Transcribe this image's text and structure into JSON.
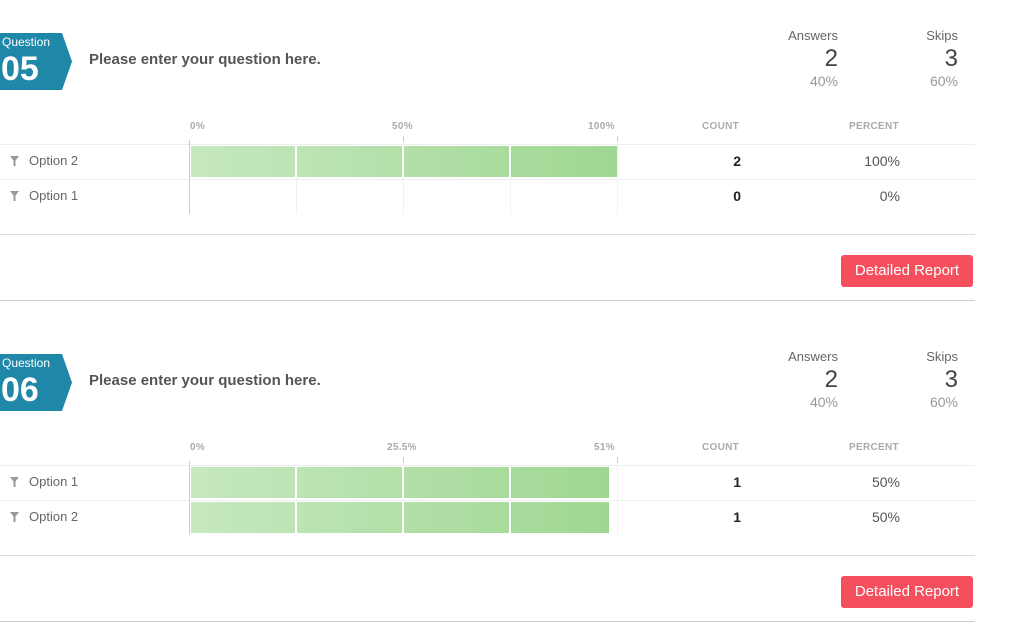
{
  "questions": [
    {
      "badge_label": "Question",
      "number": "05",
      "text": "Please enter your question here.",
      "answers_label": "Answers",
      "answers_value": "2",
      "answers_pct": "40%",
      "skips_label": "Skips",
      "skips_value": "3",
      "skips_pct": "60%",
      "axis_ticks": [
        "0%",
        "50%",
        "100%"
      ],
      "count_header": "COUNT",
      "percent_header": "PERCENT",
      "rows": [
        {
          "label": "Option 2",
          "count": "2",
          "percent": "100%",
          "fraction": 1.0
        },
        {
          "label": "Option 1",
          "count": "0",
          "percent": "0%",
          "fraction": 0.0
        }
      ],
      "button": "Detailed Report"
    },
    {
      "badge_label": "Question",
      "number": "06",
      "text": "Please enter your question here.",
      "answers_label": "Answers",
      "answers_value": "2",
      "answers_pct": "40%",
      "skips_label": "Skips",
      "skips_value": "3",
      "skips_pct": "60%",
      "axis_ticks": [
        "0%",
        "25.5%",
        "51%"
      ],
      "count_header": "COUNT",
      "percent_header": "PERCENT",
      "rows": [
        {
          "label": "Option 1",
          "count": "1",
          "percent": "50%",
          "fraction": 0.5
        },
        {
          "label": "Option 2",
          "count": "1",
          "percent": "50%",
          "fraction": 0.5
        }
      ],
      "button": "Detailed Report"
    }
  ],
  "colors": {
    "accent": "#1f87a8",
    "button": "#f54e5c",
    "bar_start": "#c6e8c0",
    "bar_end": "#9fd791"
  },
  "icons": {
    "row_icon": "filter-icon"
  }
}
